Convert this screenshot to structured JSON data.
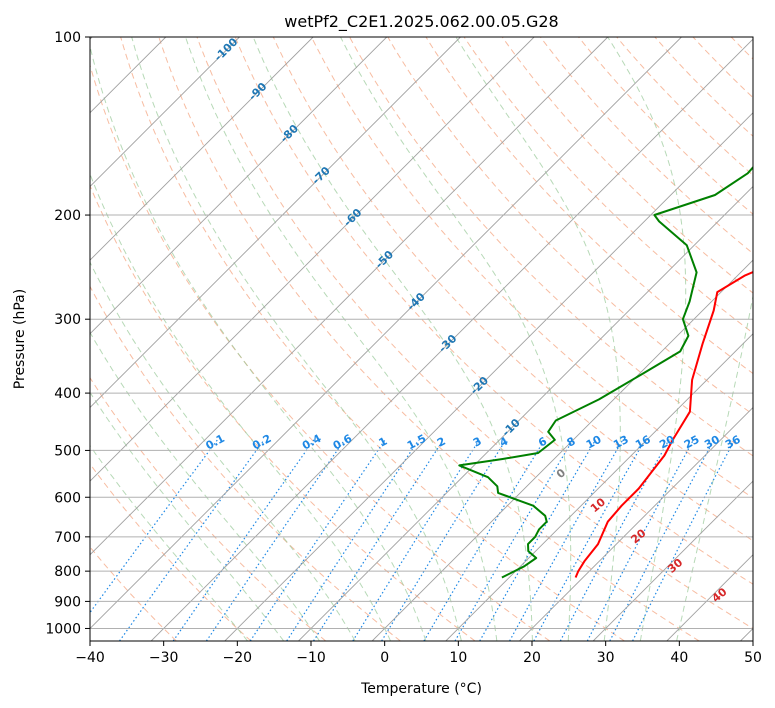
{
  "chart_data": {
    "type": "line",
    "title": "wetPf2_C2E1.2025.062.00.05.G28",
    "xlabel": "Temperature (°C)",
    "ylabel": "Pressure (hPa)",
    "xlim": [
      -40,
      50
    ],
    "ylim": [
      1050,
      100
    ],
    "y_scale": "log",
    "x_ticks": [
      "−40",
      "−30",
      "−20",
      "−10",
      "0",
      "10",
      "20",
      "30",
      "40",
      "50"
    ],
    "x_tick_values": [
      -40,
      -30,
      -20,
      -10,
      0,
      10,
      20,
      30,
      40,
      50
    ],
    "y_ticks": [
      "100",
      "200",
      "300",
      "400",
      "500",
      "600",
      "700",
      "800",
      "900",
      "1000"
    ],
    "y_tick_values": [
      100,
      200,
      300,
      400,
      500,
      600,
      700,
      800,
      900,
      1000
    ],
    "grid": true,
    "colors": {
      "temperature": "#ff0000",
      "dewpoint": "#008000",
      "isotherm": "#a0a0a0",
      "dry_adiabat": "#f4a582",
      "moist_adiabat": "#98c998",
      "mixing_ratio": "#1e88e5",
      "isotherm_label": "#1f77b4",
      "mixing_ratio_label": "#1e88e5",
      "red_label": "#d62728",
      "grey_label": "#808080"
    },
    "series": [
      {
        "key": "temperature",
        "points": [
          [
            19.0,
            820
          ],
          [
            18.5,
            800
          ],
          [
            18.0,
            770
          ],
          [
            17.5,
            720
          ],
          [
            15.8,
            660
          ],
          [
            15.5,
            620
          ],
          [
            15.5,
            580
          ],
          [
            15.0,
            545
          ],
          [
            14.5,
            510
          ],
          [
            13.5,
            480
          ],
          [
            12.0,
            430
          ],
          [
            8.0,
            380
          ],
          [
            4.5,
            330
          ],
          [
            1.5,
            290
          ],
          [
            -0.5,
            270
          ],
          [
            1.0,
            253
          ],
          [
            4.5,
            235
          ],
          [
            9.0,
            215
          ],
          [
            11.5,
            200
          ],
          [
            13.0,
            175
          ],
          [
            13.2,
            150
          ],
          [
            12.7,
            135
          ],
          [
            13.0,
            122
          ],
          [
            16.0,
            113
          ],
          [
            18.5,
            105
          ],
          [
            20.0,
            100
          ]
        ]
      },
      {
        "key": "dewpoint",
        "points": [
          [
            9.0,
            820
          ],
          [
            10.5,
            785
          ],
          [
            11.0,
            760
          ],
          [
            9.0,
            740
          ],
          [
            8.0,
            720
          ],
          [
            8.0,
            700
          ],
          [
            7.5,
            680
          ],
          [
            7.5,
            660
          ],
          [
            6.5,
            645
          ],
          [
            3.5,
            620
          ],
          [
            -3.0,
            590
          ],
          [
            -4.0,
            575
          ],
          [
            -6.5,
            555
          ],
          [
            -12.0,
            530
          ],
          [
            -7.0,
            517
          ],
          [
            -3.0,
            505
          ],
          [
            -2.5,
            480
          ],
          [
            -4.5,
            465
          ],
          [
            -5.0,
            445
          ],
          [
            -2.0,
            410
          ],
          [
            0.5,
            370
          ],
          [
            2.5,
            340
          ],
          [
            1.5,
            320
          ],
          [
            -1.5,
            300
          ],
          [
            -3.0,
            280
          ],
          [
            -6.0,
            250
          ],
          [
            -11.0,
            225
          ],
          [
            -18.0,
            205
          ],
          [
            -19.5,
            200
          ],
          [
            -14.0,
            185
          ],
          [
            -12.5,
            170
          ],
          [
            -13.0,
            150
          ],
          [
            -12.5,
            140
          ],
          [
            -9.5,
            130
          ],
          [
            -6.5,
            118
          ],
          [
            -3.5,
            110
          ],
          [
            -0.5,
            100
          ]
        ]
      }
    ],
    "isotherm_labels": [
      "-100",
      "-90",
      "-80",
      "-70",
      "-60",
      "-50",
      "-40",
      "-30",
      "-20",
      "-10"
    ],
    "isotherm_label_values": [
      -100,
      -90,
      -80,
      -70,
      -60,
      -50,
      -40,
      -30,
      -20,
      -10
    ],
    "mixing_ratio_labels": [
      "0.1",
      "0.2",
      "0.4",
      "0.6",
      "1",
      "1.5",
      "2",
      "3",
      "4",
      "6",
      "8",
      "10",
      "13",
      "16",
      "20",
      "25",
      "30",
      "36"
    ],
    "mixing_ratio_values": [
      0.1,
      0.2,
      0.4,
      0.6,
      1,
      1.5,
      2,
      3,
      4,
      6,
      8,
      10,
      13,
      16,
      20,
      25,
      30,
      36
    ],
    "red_labels": [
      "10",
      "20",
      "30",
      "40"
    ],
    "grey_labels": [
      "0"
    ]
  }
}
